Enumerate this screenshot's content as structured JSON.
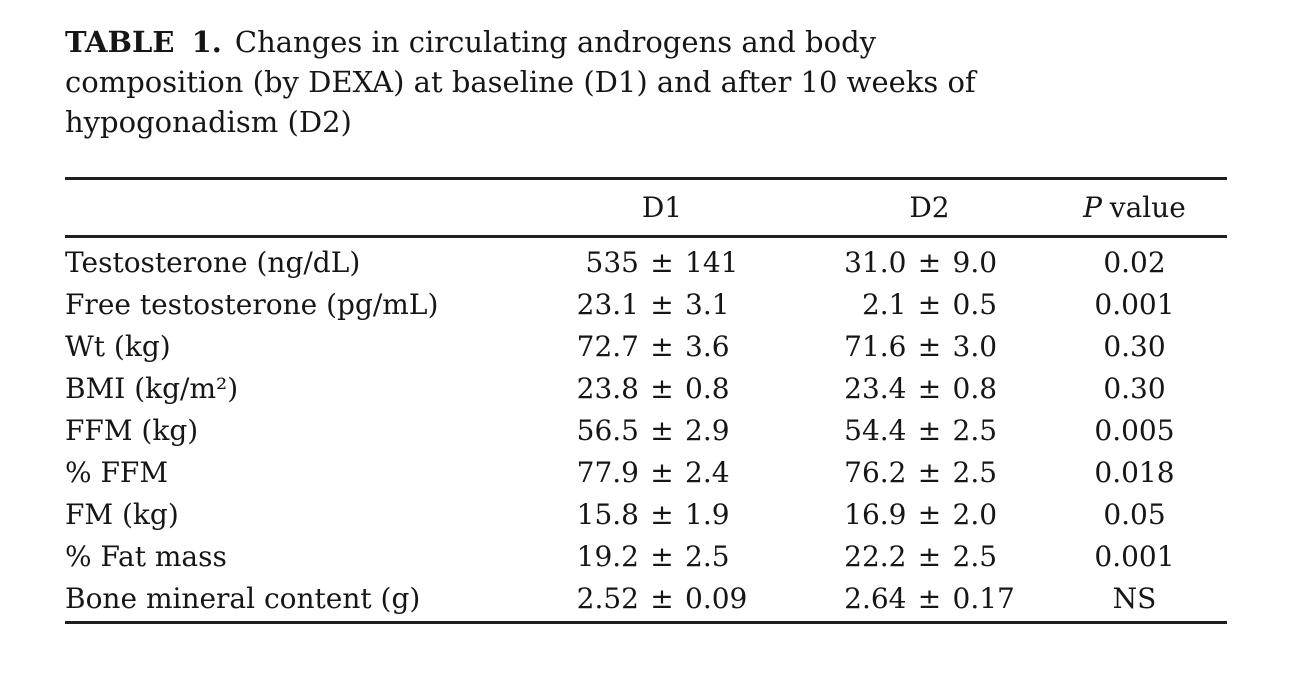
{
  "title": {
    "prefix": "TABLE 1.",
    "lines": [
      "Changes in circulating androgens and body",
      "composition (by DEXA) at baseline (D1) and after 10 weeks of",
      "hypogonadism (D2)"
    ]
  },
  "table": {
    "plus_minus": "±",
    "columns": {
      "d1": "D1",
      "d2": "D2",
      "p_italic": "P",
      "p_rest": "value"
    },
    "rows": [
      {
        "label": "Testosterone (ng/dL)",
        "d1_mean": "535",
        "d1_sd": "141",
        "d2_mean": "31.0",
        "d2_sd": "9.0",
        "p": "0.02"
      },
      {
        "label": "Free testosterone (pg/mL)",
        "d1_mean": "23.1",
        "d1_sd": "3.1",
        "d2_mean": "2.1",
        "d2_sd": "0.5",
        "p": "0.001"
      },
      {
        "label": "Wt (kg)",
        "d1_mean": "72.7",
        "d1_sd": "3.6",
        "d2_mean": "71.6",
        "d2_sd": "3.0",
        "p": "0.30"
      },
      {
        "label": "BMI (kg/m²)",
        "d1_mean": "23.8",
        "d1_sd": "0.8",
        "d2_mean": "23.4",
        "d2_sd": "0.8",
        "p": "0.30"
      },
      {
        "label": "FFM (kg)",
        "d1_mean": "56.5",
        "d1_sd": "2.9",
        "d2_mean": "54.4",
        "d2_sd": "2.5",
        "p": "0.005"
      },
      {
        "label": "% FFM",
        "d1_mean": "77.9",
        "d1_sd": "2.4",
        "d2_mean": "76.2",
        "d2_sd": "2.5",
        "p": "0.018"
      },
      {
        "label": "FM (kg)",
        "d1_mean": "15.8",
        "d1_sd": "1.9",
        "d2_mean": "16.9",
        "d2_sd": "2.0",
        "p": "0.05"
      },
      {
        "label": "% Fat mass",
        "d1_mean": "19.2",
        "d1_sd": "2.5",
        "d2_mean": "22.2",
        "d2_sd": "2.5",
        "p": "0.001"
      },
      {
        "label": "Bone mineral content (g)",
        "d1_mean": "2.52",
        "d1_sd": "0.09",
        "d2_mean": "2.64",
        "d2_sd": "0.17",
        "p": "NS"
      }
    ]
  }
}
